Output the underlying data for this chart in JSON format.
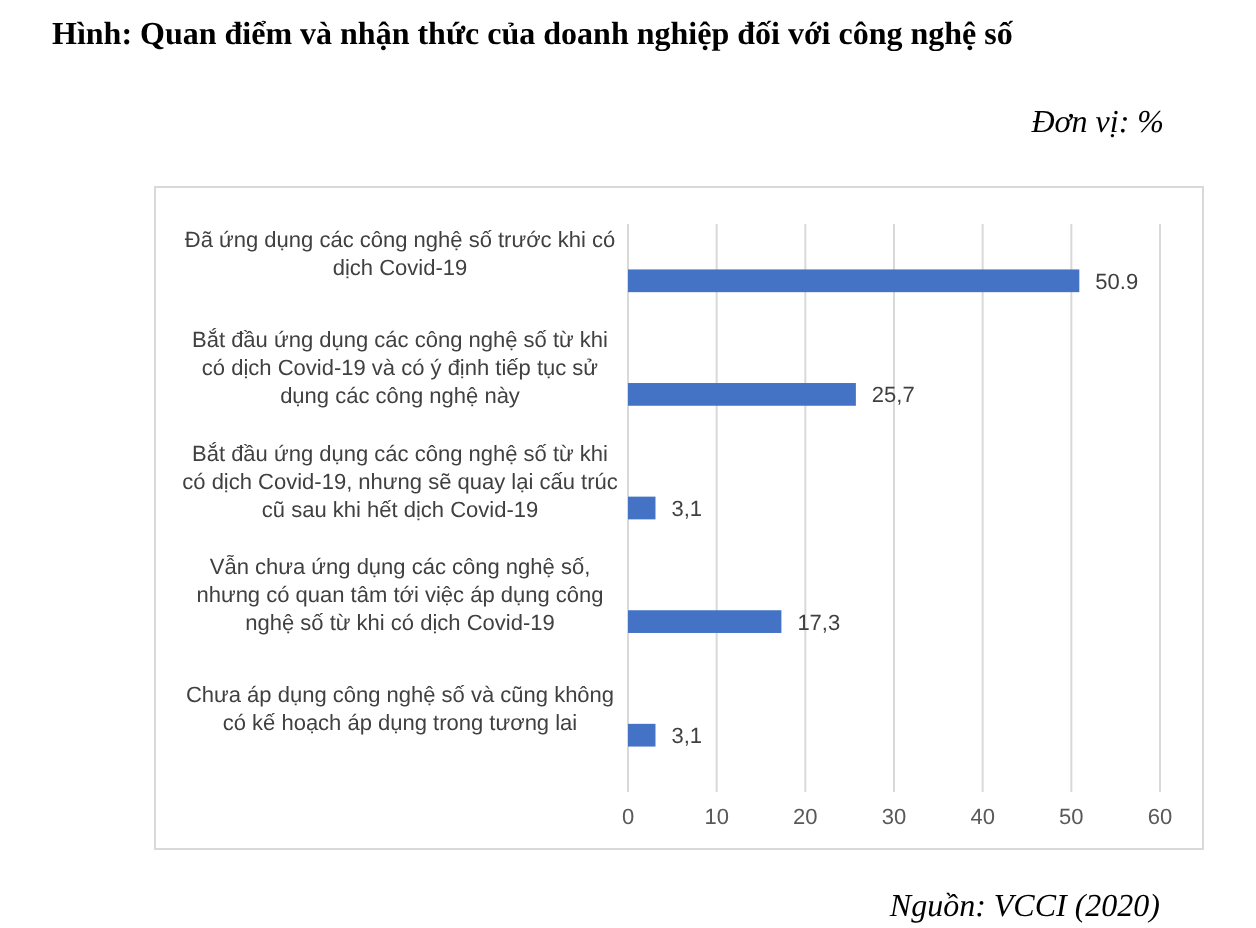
{
  "chart_data": {
    "type": "bar",
    "orientation": "horizontal",
    "title": "Hình: Quan điểm và nhận thức của doanh nghiệp đối với công nghệ số",
    "subtitle": "Đơn vị: %",
    "categories": [
      "Đã ứng dụng các công nghệ số trước khi có dịch Covid-19",
      "Bắt đầu ứng dụng các công nghệ số từ khi có dịch Covid-19 và có ý định tiếp tục sử dụng các công nghệ này",
      "Bắt đầu ứng dụng các công nghệ số từ khi có dịch Covid-19, nhưng sẽ quay lại cấu trúc cũ sau khi hết dịch Covid-19",
      "Vẫn chưa ứng dụng các công nghệ số, nhưng có quan tâm tới việc áp dụng công nghệ số từ khi có dịch Covid-19",
      "Chưa áp dụng công nghệ số và cũng không có kế hoạch áp dụng trong tương lai"
    ],
    "values": [
      50.9,
      25.7,
      3.1,
      17.3,
      3.1
    ],
    "value_labels": [
      "50.9",
      "25,7",
      "3,1",
      "17,3",
      "3,1"
    ],
    "color": "#4472c4",
    "xlim": [
      0,
      60
    ],
    "xticks": [
      0,
      10,
      20,
      30,
      40,
      50,
      60
    ],
    "grid": "x",
    "annotations": [
      "Nguồn: VCCI (2020)"
    ]
  }
}
